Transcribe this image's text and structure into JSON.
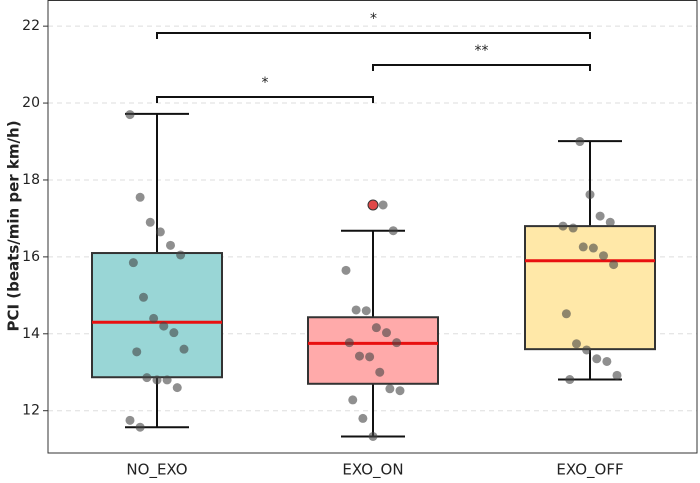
{
  "chart_data": {
    "type": "box",
    "y_label": "PCI (beats/min per km/h)",
    "categories": [
      "NO_EXO",
      "EXO_ON",
      "EXO_OFF"
    ],
    "boxes": [
      {
        "color": "#99d6d6",
        "whisker_low": 11.57,
        "q1": 12.87,
        "median": 14.3,
        "q3": 16.1,
        "whisker_high": 19.72,
        "outliers": [],
        "points": [
          19.7,
          17.55,
          16.9,
          16.65,
          16.3,
          16.05,
          15.85,
          14.95,
          14.4,
          14.2,
          14.03,
          13.6,
          13.53,
          12.86,
          12.8,
          12.8,
          12.6,
          11.75,
          11.57
        ]
      },
      {
        "color": "#ffaaaa",
        "whisker_low": 11.33,
        "q1": 12.7,
        "median": 13.75,
        "q3": 14.43,
        "whisker_high": 16.68,
        "outliers": [
          17.35
        ],
        "points": [
          17.35,
          16.68,
          15.65,
          14.62,
          14.6,
          14.16,
          14.03,
          13.77,
          13.77,
          13.42,
          13.4,
          13.0,
          12.57,
          12.52,
          12.28,
          11.8,
          11.33
        ]
      },
      {
        "color": "#ffe8a8",
        "whisker_low": 12.81,
        "q1": 13.6,
        "median": 15.9,
        "q3": 16.8,
        "whisker_high": 19.01,
        "outliers": [],
        "points": [
          19.0,
          17.62,
          17.06,
          16.9,
          16.8,
          16.75,
          16.26,
          16.23,
          16.03,
          15.8,
          14.52,
          13.74,
          13.58,
          13.35,
          13.28,
          12.92,
          12.81
        ]
      }
    ],
    "median_color": "#e81010",
    "point_color": "#444444",
    "outlier_color": "#e04848",
    "significance": [
      {
        "pair": [
          "NO_EXO",
          "EXO_ON"
        ],
        "label": "*"
      },
      {
        "pair": [
          "EXO_ON",
          "EXO_OFF"
        ],
        "label": "**"
      },
      {
        "pair": [
          "NO_EXO",
          "EXO_OFF"
        ],
        "label": "*"
      }
    ],
    "ylim": [
      10.9,
      22.68
    ],
    "yticks": [
      12,
      14,
      16,
      18,
      20,
      22
    ],
    "grid": true
  }
}
